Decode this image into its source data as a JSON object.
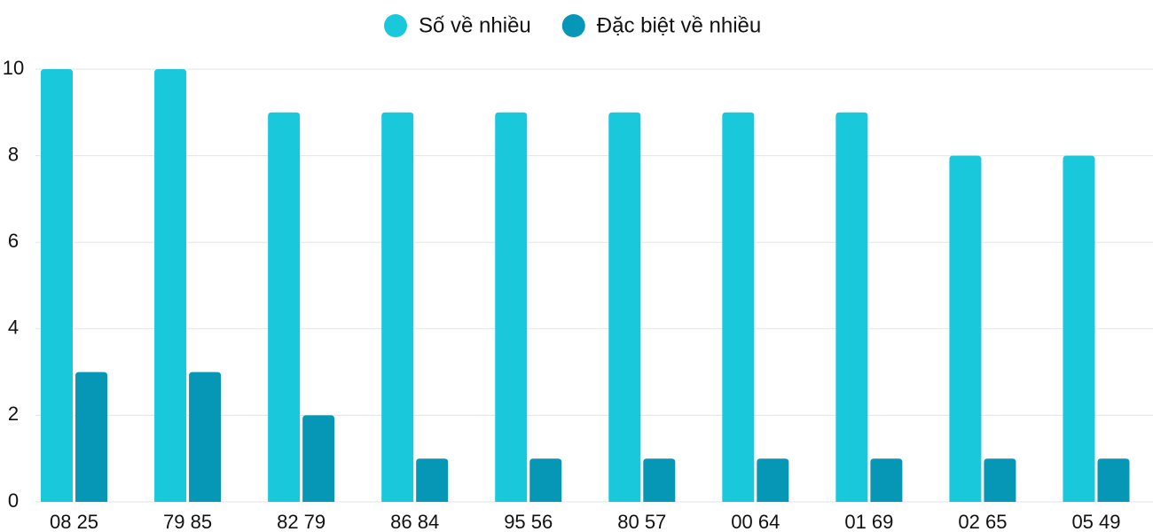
{
  "chart_data": {
    "type": "bar",
    "categories": [
      "08 25",
      "79 85",
      "82 79",
      "86 84",
      "95 56",
      "80 57",
      "00 64",
      "01 69",
      "02 65",
      "05 49"
    ],
    "series": [
      {
        "name": "Số về nhiều",
        "color": "#1ac8db",
        "values": [
          10,
          10,
          9,
          9,
          9,
          9,
          9,
          9,
          8,
          8
        ]
      },
      {
        "name": "Đặc biệt về nhiều",
        "color": "#0696b6",
        "values": [
          3,
          3,
          2,
          1,
          1,
          1,
          1,
          1,
          1,
          1
        ]
      }
    ],
    "ylim": [
      0,
      10
    ],
    "yticks": [
      0,
      2,
      4,
      6,
      8,
      10
    ],
    "grid": true,
    "legend": "top"
  }
}
